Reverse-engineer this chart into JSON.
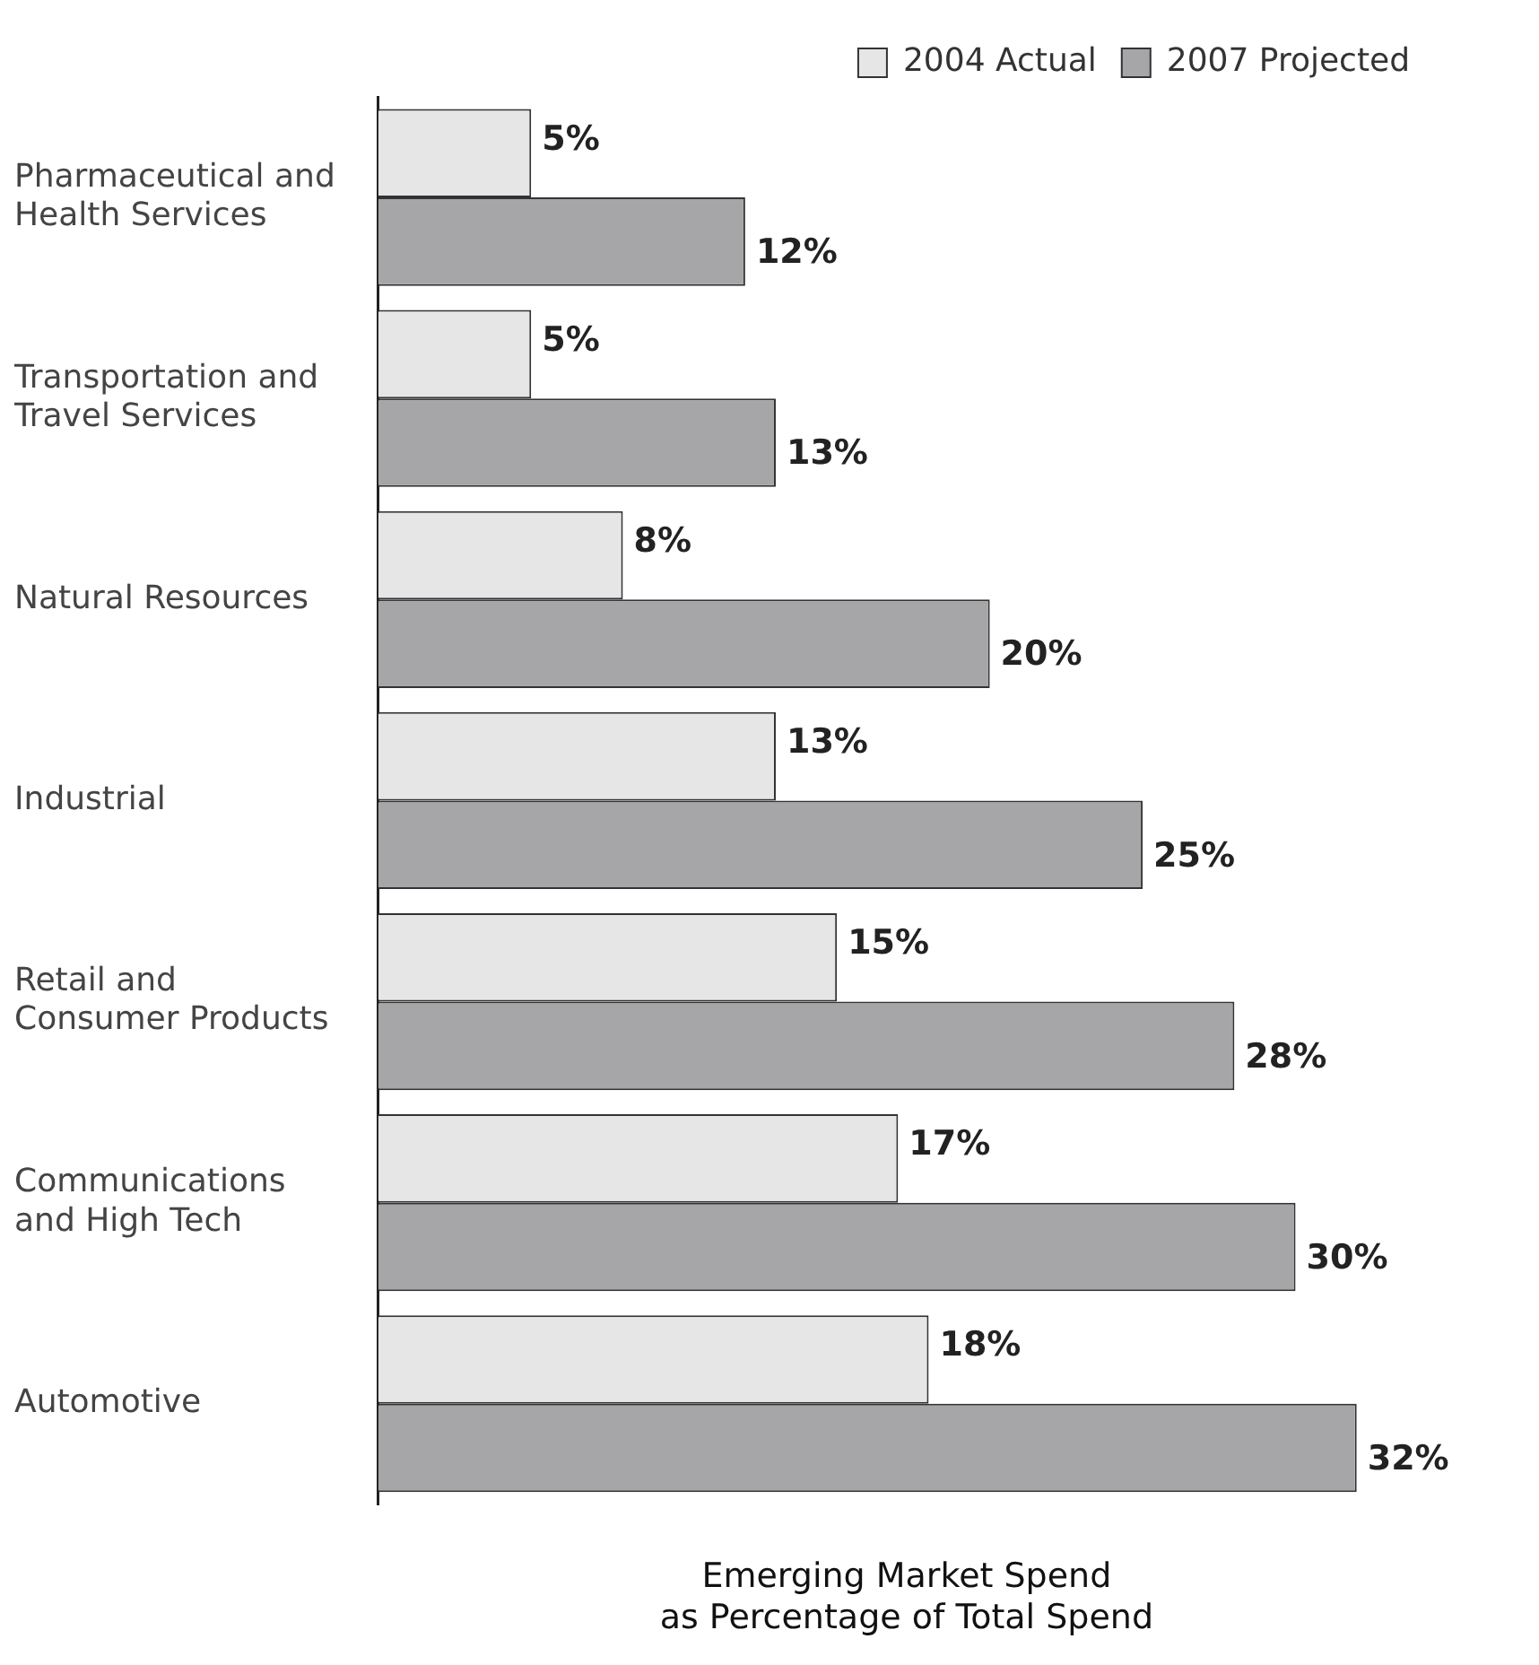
{
  "chart_data": {
    "type": "bar",
    "orientation": "horizontal",
    "xlabel": "Emerging Market Spend\nas Percentage of Total Spend",
    "categories": [
      "Pharmaceutical and Health Services",
      "Transportation and Travel Services",
      "Natural Resources",
      "Industrial",
      "Retail and Consumer Products",
      "Communications and High Tech",
      "Automotive"
    ],
    "series": [
      {
        "name": "2004 Actual",
        "color": "#e6e6e6",
        "values": [
          5,
          5,
          8,
          13,
          15,
          17,
          18
        ],
        "value_labels": [
          "5%",
          "5%",
          "8%",
          "13%",
          "15%",
          "17%",
          "18%"
        ]
      },
      {
        "name": "2007 Projected",
        "color": "#a6a6a8",
        "values": [
          12,
          13,
          20,
          25,
          28,
          30,
          32
        ],
        "value_labels": [
          "12%",
          "13%",
          "20%",
          "25%",
          "28%",
          "30%",
          "32%"
        ]
      }
    ],
    "legend": "top right",
    "tick_labels": "y",
    "grid": false
  }
}
